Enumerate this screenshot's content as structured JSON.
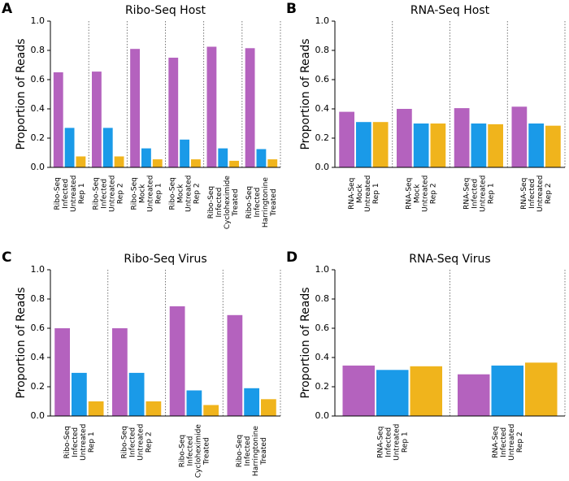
{
  "chart_data": [
    {
      "type": "bar",
      "label": "A",
      "title": "Ribo-Seq Host",
      "ylabel": "Proportion of Reads",
      "categories": [
        [
          "Ribo-Seq",
          "Infected",
          "Untreated",
          "Rep 1"
        ],
        [
          "Ribo-Seq",
          "Infected",
          "Untreated",
          "Rep 2"
        ],
        [
          "Ribo-Seq",
          "Mock",
          "Untreated",
          "Rep 1"
        ],
        [
          "Ribo-Seq",
          "Mock",
          "Untreated",
          "Rep 2"
        ],
        [
          "Ribo-Seq",
          "Infected",
          "Cycloheximide",
          "Treated"
        ],
        [
          "Ribo-Seq",
          "Infected",
          "Harringtonine",
          "Treated"
        ]
      ],
      "series": [
        {
          "color": "#b462be",
          "values": [
            0.65,
            0.655,
            0.81,
            0.75,
            0.825,
            0.815
          ]
        },
        {
          "color": "#1a9ae8",
          "values": [
            0.27,
            0.27,
            0.13,
            0.19,
            0.13,
            0.125
          ]
        },
        {
          "color": "#f0b41c",
          "values": [
            0.075,
            0.075,
            0.055,
            0.055,
            0.045,
            0.055
          ]
        }
      ],
      "ylim": [
        0,
        1
      ],
      "yticks": [
        {
          "value": 0,
          "label": "0.0"
        },
        0.2,
        0.4,
        0.6,
        0.8,
        {
          "value": 1,
          "label": "1.0"
        }
      ]
    },
    {
      "type": "bar",
      "label": "B",
      "title": "RNA-Seq Host",
      "ylabel": "Proportion of Reads",
      "categories": [
        [
          "RNA-Seq",
          "Mock",
          "Untreated",
          "Rep 1"
        ],
        [
          "RNA-Seq",
          "Mock",
          "Untreated",
          "Rep 2"
        ],
        [
          "RNA-Seq",
          "Infected",
          "Untreated",
          "Rep 1"
        ],
        [
          "RNA-Seq",
          "Infected",
          "Untreated",
          "Rep 2"
        ]
      ],
      "series": [
        {
          "color": "#b462be",
          "values": [
            0.38,
            0.4,
            0.405,
            0.415
          ]
        },
        {
          "color": "#1a9ae8",
          "values": [
            0.31,
            0.3,
            0.3,
            0.3
          ]
        },
        {
          "color": "#f0b41c",
          "values": [
            0.31,
            0.3,
            0.295,
            0.285
          ]
        }
      ],
      "ylim": [
        0,
        1
      ],
      "yticks": [
        {
          "value": 0,
          "label": "0.0"
        },
        0.2,
        0.4,
        0.6,
        0.8,
        {
          "value": 1,
          "label": "1.0"
        }
      ]
    },
    {
      "type": "bar",
      "label": "C",
      "title": "Ribo-Seq Virus",
      "ylabel": "Proportion of Reads",
      "categories": [
        [
          "Ribo-Seq",
          "Infected",
          "Untreated",
          "Rep 1"
        ],
        [
          "Ribo-Seq",
          "Infected",
          "Untreated",
          "Rep 2"
        ],
        [
          "Ribo-Seq",
          "Infected",
          "Cycloheximide",
          "Treated"
        ],
        [
          "Ribo-Seq",
          "Infected",
          "Harringtonine",
          "Treated"
        ]
      ],
      "series": [
        {
          "color": "#b462be",
          "values": [
            0.6,
            0.6,
            0.75,
            0.69
          ]
        },
        {
          "color": "#1a9ae8",
          "values": [
            0.295,
            0.295,
            0.175,
            0.19
          ]
        },
        {
          "color": "#f0b41c",
          "values": [
            0.1,
            0.1,
            0.075,
            0.115
          ]
        }
      ],
      "ylim": [
        0,
        1
      ],
      "yticks": [
        {
          "value": 0,
          "label": "0.0"
        },
        0.2,
        0.4,
        0.6,
        0.8,
        {
          "value": 1,
          "label": "1.0"
        }
      ]
    },
    {
      "type": "bar",
      "label": "D",
      "title": "RNA-Seq Virus",
      "ylabel": "Proportion of Reads",
      "categories": [
        [
          "RNA-Seq",
          "Infected",
          "Untreated",
          "Rep 1"
        ],
        [
          "RNA-Seq",
          "Infected",
          "Untreated",
          "Rep 2"
        ]
      ],
      "series": [
        {
          "color": "#b462be",
          "values": [
            0.345,
            0.285
          ]
        },
        {
          "color": "#1a9ae8",
          "values": [
            0.315,
            0.345
          ]
        },
        {
          "color": "#f0b41c",
          "values": [
            0.34,
            0.365
          ]
        }
      ],
      "ylim": [
        0,
        1
      ],
      "yticks": [
        {
          "value": 0,
          "label": "0.0"
        },
        0.2,
        0.4,
        0.6,
        0.8,
        {
          "value": 1,
          "label": "1.0"
        }
      ]
    }
  ]
}
